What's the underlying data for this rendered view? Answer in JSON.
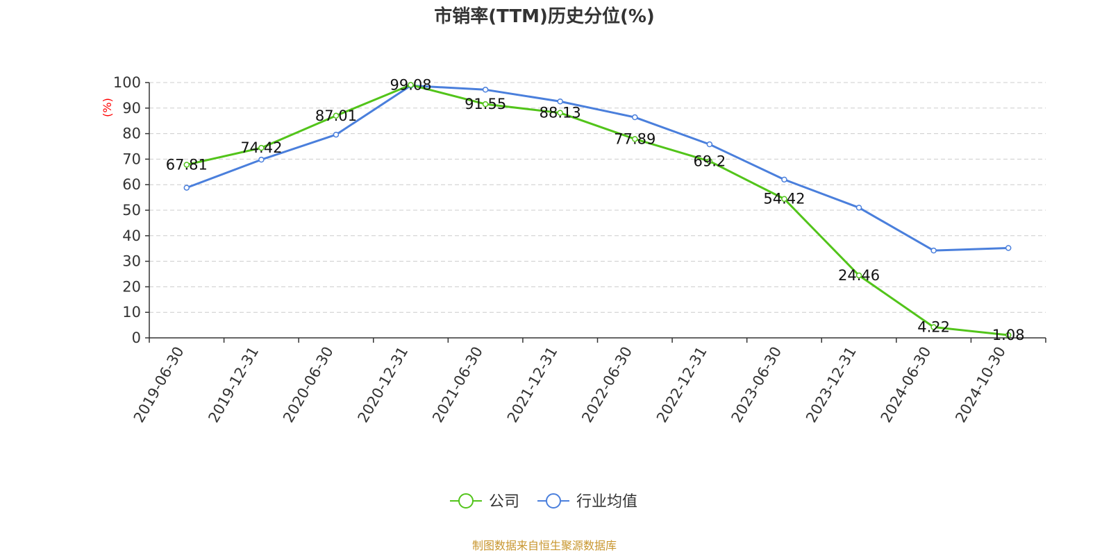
{
  "chart_data": {
    "type": "line",
    "title": "市销率(TTM)历史分位(%)",
    "ylabel": "(%)",
    "xlabel": "",
    "ylim": [
      0,
      100
    ],
    "yticks": [
      0,
      10,
      20,
      30,
      40,
      50,
      60,
      70,
      80,
      90,
      100
    ],
    "grid": true,
    "legend_position": "bottom",
    "categories": [
      "2019-06-30",
      "2019-12-31",
      "2020-06-30",
      "2020-12-31",
      "2021-06-30",
      "2021-12-31",
      "2022-06-30",
      "2022-12-31",
      "2023-06-30",
      "2023-12-31",
      "2024-06-30",
      "2024-10-30"
    ],
    "series": [
      {
        "name": "公司",
        "color": "#52c41a",
        "values": [
          67.81,
          74.42,
          87.01,
          99.08,
          91.55,
          88.13,
          77.89,
          69.2,
          54.42,
          24.46,
          4.22,
          1.08
        ],
        "labels": [
          "67.81",
          "74.42",
          "87.01",
          "99.08",
          "91.55",
          "88.13",
          "77.89",
          "69.2",
          "54.42",
          "24.46",
          "4.22",
          "1.08"
        ]
      },
      {
        "name": "行业均值",
        "color": "#4a7fdc",
        "values": [
          58.8,
          69.8,
          79.6,
          98.8,
          97.2,
          92.6,
          86.4,
          75.8,
          62.0,
          51.0,
          34.2,
          35.2
        ]
      }
    ],
    "source": "制图数据来自恒生聚源数据库"
  }
}
